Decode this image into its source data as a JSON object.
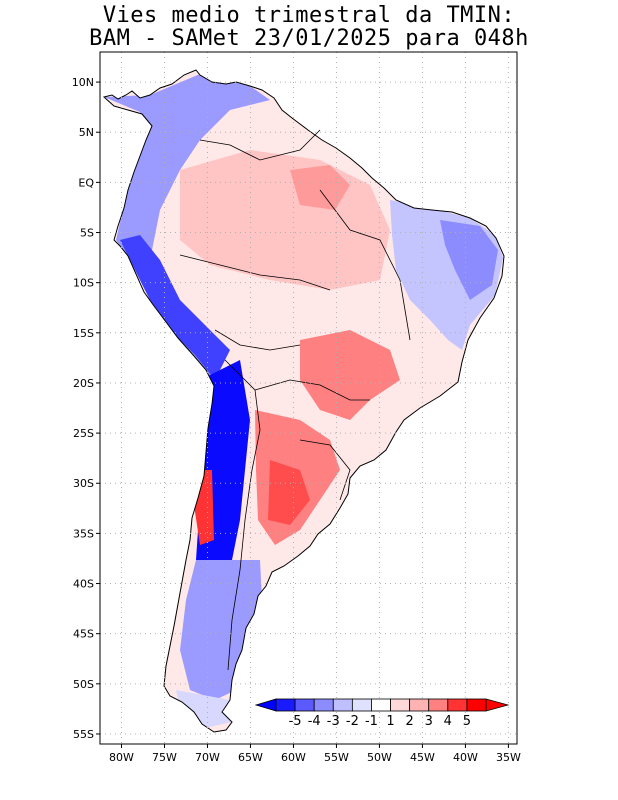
{
  "title": {
    "line1": "Vies medio trimestral da TMIN:",
    "line2": "BAM - SAMet 23/01/2025  para 048h"
  },
  "axes": {
    "lat_labels": [
      "10N",
      "5N",
      "EQ",
      "5S",
      "10S",
      "15S",
      "20S",
      "25S",
      "30S",
      "35S",
      "40S",
      "45S",
      "50S",
      "55S"
    ],
    "lat_values": [
      10,
      5,
      0,
      -5,
      -10,
      -15,
      -20,
      -25,
      -30,
      -35,
      -40,
      -45,
      -50,
      -55
    ],
    "lon_labels": [
      "80W",
      "75W",
      "70W",
      "65W",
      "60W",
      "55W",
      "50W",
      "45W",
      "40W",
      "35W"
    ],
    "lon_values": [
      -80,
      -75,
      -70,
      -65,
      -60,
      -55,
      -50,
      -45,
      -40,
      -35
    ],
    "lat_range": [
      -56,
      13
    ],
    "lon_range": [
      -82.5,
      -34
    ]
  },
  "colorbar": {
    "labels": [
      "-5",
      "-4",
      "-3",
      "-2",
      "-1",
      "1",
      "2",
      "3",
      "4",
      "5"
    ],
    "colors": [
      "#1a1aff",
      "#5a5aff",
      "#8c8cff",
      "#bfbfff",
      "#e0e0ff",
      "#ffffff",
      "#ffd9d9",
      "#ffb3b3",
      "#ff8080",
      "#ff3333",
      "#ff0000"
    ],
    "low_arrow_color": "#0000ff",
    "high_arrow_color": "#ff0000"
  },
  "colors": {
    "coast": "#000000",
    "grid": "#b0b0b0"
  }
}
